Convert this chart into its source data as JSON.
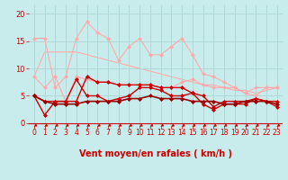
{
  "x": [
    0,
    1,
    2,
    3,
    4,
    5,
    6,
    7,
    8,
    9,
    10,
    11,
    12,
    13,
    14,
    15,
    16,
    17,
    18,
    19,
    20,
    21,
    22,
    23
  ],
  "background_color": "#c8ecec",
  "grid_color": "#b0d8d8",
  "xlabel": "Vent moyen/en rafales ( km/h )",
  "xlabel_color": "#cc0000",
  "yticks": [
    0,
    5,
    10,
    15,
    20
  ],
  "ylim": [
    -0.5,
    21.5
  ],
  "xlim": [
    -0.5,
    23.5
  ],
  "lines": [
    {
      "y": [
        8.5,
        6.5,
        8.5,
        4.0,
        8.5,
        8.0,
        7.5,
        7.5,
        7.0,
        7.0,
        7.0,
        7.0,
        6.5,
        6.5,
        7.5,
        8.0,
        7.0,
        6.5,
        6.5,
        6.5,
        5.5,
        6.5,
        6.5,
        6.5
      ],
      "color": "#ffaaaa",
      "linewidth": 0.8,
      "marker": "D",
      "markersize": 2.0,
      "zorder": 2,
      "linestyle": "-"
    },
    {
      "y": [
        15.5,
        15.5,
        6.5,
        8.5,
        15.5,
        18.5,
        16.5,
        15.5,
        11.5,
        14.0,
        15.5,
        12.5,
        12.5,
        14.0,
        15.5,
        12.5,
        9.0,
        8.5,
        7.5,
        6.5,
        5.5,
        5.0,
        6.5,
        6.5
      ],
      "color": "#ffaaaa",
      "linewidth": 0.8,
      "marker": "D",
      "markersize": 2.0,
      "zorder": 2,
      "linestyle": "-"
    },
    {
      "y": [
        5.0,
        1.5,
        4.0,
        4.0,
        8.0,
        5.0,
        5.0,
        4.0,
        4.5,
        5.0,
        6.5,
        6.5,
        6.0,
        5.0,
        5.0,
        5.5,
        3.5,
        2.5,
        3.5,
        3.5,
        3.5,
        4.5,
        4.0,
        3.0
      ],
      "color": "#cc0000",
      "linewidth": 1.0,
      "marker": "D",
      "markersize": 2.0,
      "zorder": 3,
      "linestyle": "-"
    },
    {
      "y": [
        5.0,
        4.0,
        4.0,
        4.0,
        4.0,
        8.5,
        7.5,
        7.5,
        7.0,
        7.0,
        7.0,
        7.0,
        6.5,
        6.5,
        6.5,
        5.5,
        5.0,
        3.0,
        4.0,
        4.0,
        4.0,
        4.5,
        4.0,
        4.0
      ],
      "color": "#cc0000",
      "linewidth": 1.0,
      "marker": "D",
      "markersize": 2.0,
      "zorder": 3,
      "linestyle": "-"
    },
    {
      "y": [
        5.0,
        4.0,
        3.5,
        3.5,
        3.5,
        4.0,
        4.0,
        4.0,
        4.0,
        4.5,
        4.5,
        5.0,
        4.5,
        4.5,
        4.5,
        4.0,
        4.0,
        4.0,
        3.5,
        3.5,
        4.0,
        4.0,
        4.0,
        3.5
      ],
      "color": "#990000",
      "linewidth": 1.2,
      "marker": "D",
      "markersize": 2.0,
      "zorder": 4,
      "linestyle": "-"
    },
    {
      "y": [
        8.5,
        13.0,
        13.0,
        13.0,
        13.0,
        12.5,
        12.0,
        11.5,
        11.0,
        10.5,
        10.0,
        9.5,
        9.0,
        8.5,
        8.0,
        7.5,
        7.0,
        7.0,
        6.5,
        6.0,
        6.0,
        5.5,
        6.0,
        6.5
      ],
      "color": "#ffaaaa",
      "linewidth": 0.8,
      "marker": null,
      "markersize": 0,
      "linestyle": "-",
      "zorder": 1
    }
  ],
  "arrow_color": "#cc0000",
  "tick_color": "#cc0000",
  "axis_color": "#cc0000",
  "tick_fontsize": 5.5,
  "label_fontsize": 7.0
}
